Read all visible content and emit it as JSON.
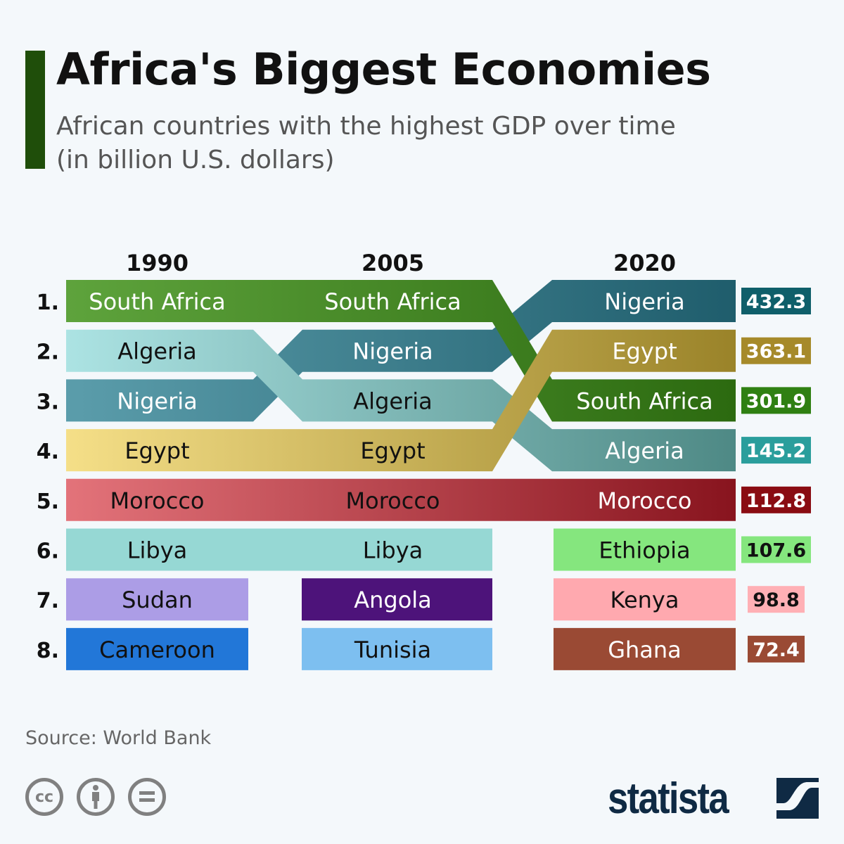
{
  "header": {
    "title": "Africa's Biggest Economies",
    "subtitle_line1": "African countries with the highest GDP over time",
    "subtitle_line2": "(in billion U.S. dollars)"
  },
  "footer": {
    "source": "Source: World Bank",
    "brand": "statista",
    "license_icons": [
      "cc-icon",
      "attribution-icon",
      "no-derivatives-icon"
    ]
  },
  "chart_data": {
    "type": "bump",
    "years": [
      "1990",
      "2005",
      "2020"
    ],
    "ranks": [
      "1.",
      "2.",
      "3.",
      "4.",
      "5.",
      "6.",
      "7.",
      "8."
    ],
    "rankings": {
      "1990": [
        "South Africa",
        "Algeria",
        "Nigeria",
        "Egypt",
        "Morocco",
        "Libya",
        "Sudan",
        "Cameroon"
      ],
      "2005": [
        "South Africa",
        "Nigeria",
        "Algeria",
        "Egypt",
        "Morocco",
        "Libya",
        "Angola",
        "Tunisia"
      ],
      "2020": [
        "Nigeria",
        "Egypt",
        "South Africa",
        "Algeria",
        "Morocco",
        "Ethiopia",
        "Kenya",
        "Ghana"
      ]
    },
    "values_2020": [
      432.3,
      363.1,
      301.9,
      145.2,
      112.8,
      107.6,
      98.8,
      72.4
    ],
    "unit": "billion U.S. dollars",
    "colors": {
      "South Africa": [
        "#5ea33c",
        "#2c6a10"
      ],
      "Algeria": [
        "#ace3e3",
        "#4e8985"
      ],
      "Nigeria": [
        "#5b9dab",
        "#1f5d6c"
      ],
      "Egypt": [
        "#f5df88",
        "#9a8329"
      ],
      "Morocco": [
        "#e3737a",
        "#88141e"
      ],
      "Libya": [
        "#96d8d4",
        "#96d8d4"
      ],
      "Sudan": [
        "#ac9de6",
        "#ac9de6"
      ],
      "Cameroon": [
        "#2277d8",
        "#2277d8"
      ],
      "Angola": [
        "#4d137a",
        "#4d137a"
      ],
      "Tunisia": [
        "#7dbff0",
        "#7dbff0"
      ],
      "Ethiopia": [
        "#85e67e",
        "#85e67e"
      ],
      "Kenya": [
        "#ffa9af",
        "#ffa9af"
      ],
      "Ghana": [
        "#9a4a34",
        "#9a4a34"
      ]
    },
    "value_box_colors": [
      "#0f5f6a",
      "#a68a2a",
      "#2f8012",
      "#2a9e9c",
      "#8a0c12",
      "#85e67e",
      "#ffb0b5",
      "#9a4a34"
    ],
    "dark_labels": {
      "1990": [
        "Algeria",
        "Egypt",
        "Morocco",
        "Libya",
        "Sudan",
        "Cameroon"
      ],
      "2005": [
        "Algeria",
        "Egypt",
        "Morocco",
        "Libya",
        "Tunisia"
      ],
      "2020": [
        "Ethiopia",
        "Kenya"
      ]
    }
  }
}
